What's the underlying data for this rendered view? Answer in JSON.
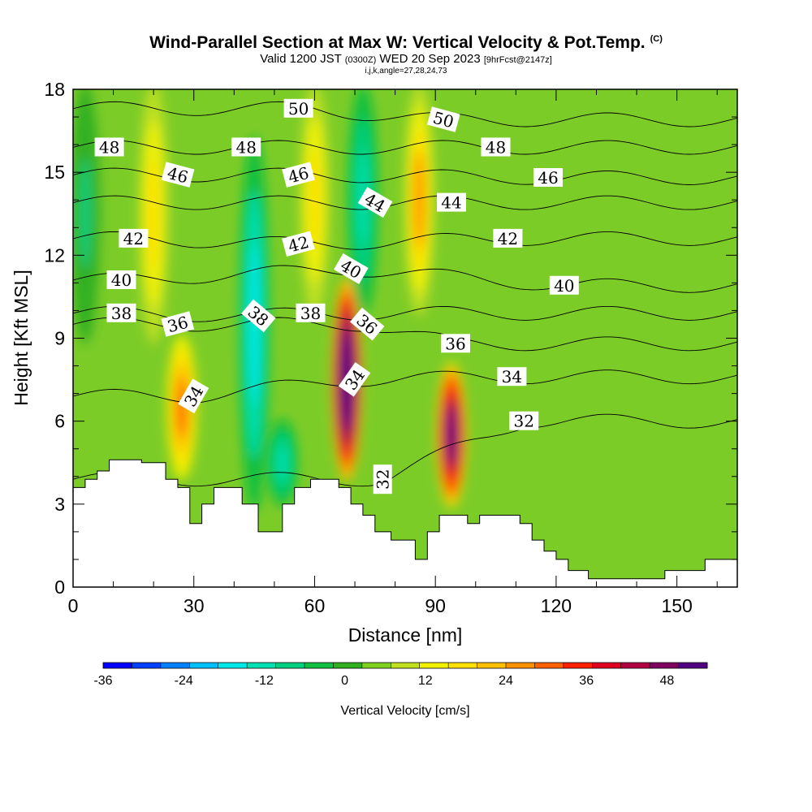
{
  "title": {
    "line1": "Wind-Parallel Section at Max W: Vertical Velocity & Pot.Temp.",
    "line1_mark": "(C)",
    "line2_a": "Valid 1200 JST",
    "line2_b": "(0300Z)",
    "line2_c": "WED 20 Sep 2023",
    "line2_d": "[9hrFcst@2147z]",
    "line3": "i,j,k,angle=27,28,24,73"
  },
  "chart_data": {
    "type": "heatmap",
    "xlabel": "Distance [nm]",
    "ylabel": "Height [Kft MSL]",
    "xlim": [
      0,
      165
    ],
    "ylim": [
      0,
      18
    ],
    "x_ticks": [
      "0",
      "30",
      "60",
      "90",
      "120",
      "150"
    ],
    "y_ticks": [
      "0",
      "3",
      "6",
      "9",
      "12",
      "15",
      "18"
    ],
    "colorbar": {
      "label": "Vertical Velocity [cm/s]",
      "min": -36,
      "max": 54,
      "step": 4,
      "tick_labels": [
        "-36",
        "-24",
        "-12",
        "0",
        "12",
        "24",
        "36",
        "48"
      ],
      "colors": [
        "#0000ff",
        "#0040ff",
        "#0080ff",
        "#00c0ff",
        "#00e8e8",
        "#00e0b0",
        "#00d080",
        "#10c040",
        "#30b020",
        "#80d020",
        "#c0e020",
        "#f0f000",
        "#ffe000",
        "#ffc000",
        "#ff9000",
        "#ff6000",
        "#ff2000",
        "#e00020",
        "#b00040",
        "#800060",
        "#500080"
      ]
    },
    "vertical_velocity_cores": [
      {
        "x": 27,
        "y_top": 9,
        "y_bottom": 4,
        "w": 24
      },
      {
        "x": 68,
        "y_top": 11,
        "y_bottom": 4,
        "w": 54
      },
      {
        "x": 94,
        "y_top": 8,
        "y_bottom": 3,
        "w": 44
      },
      {
        "x": 20,
        "y_top": 18,
        "y_bottom": 9,
        "w": 14
      },
      {
        "x": 60,
        "y_top": 18,
        "y_bottom": 10,
        "w": 12
      },
      {
        "x": 86,
        "y_top": 18,
        "y_bottom": 10,
        "w": 20
      },
      {
        "x": 45,
        "y_top": 16,
        "y_bottom": 3,
        "w": -18
      },
      {
        "x": 52,
        "y_top": 6,
        "y_bottom": 3,
        "w": -14
      },
      {
        "x": 72,
        "y_top": 18,
        "y_bottom": 10,
        "w": -16
      },
      {
        "x": 3,
        "y_top": 18,
        "y_bottom": 9,
        "w": -10
      }
    ],
    "theta_contours": [
      {
        "level": "32",
        "label_x": 77,
        "label_y": 3.9,
        "rot": -90
      },
      {
        "level": "32",
        "label_x": 112,
        "label_y": 6.0,
        "rot": 0
      },
      {
        "level": "34",
        "label_x": 30,
        "label_y": 6.9,
        "rot": -60
      },
      {
        "level": "34",
        "label_x": 70,
        "label_y": 7.5,
        "rot": -55
      },
      {
        "level": "34",
        "label_x": 109,
        "label_y": 7.6,
        "rot": 0
      },
      {
        "level": "36",
        "label_x": 26,
        "label_y": 9.5,
        "rot": -15
      },
      {
        "level": "36",
        "label_x": 73,
        "label_y": 9.5,
        "rot": 40
      },
      {
        "level": "36",
        "label_x": 95,
        "label_y": 8.8,
        "rot": 0
      },
      {
        "level": "38",
        "label_x": 12,
        "label_y": 9.9,
        "rot": 0
      },
      {
        "level": "38",
        "label_x": 46,
        "label_y": 9.8,
        "rot": 40
      },
      {
        "level": "38",
        "label_x": 59,
        "label_y": 9.9,
        "rot": 0
      },
      {
        "level": "40",
        "label_x": 12,
        "label_y": 11.1,
        "rot": 0
      },
      {
        "level": "40",
        "label_x": 69,
        "label_y": 11.5,
        "rot": 30
      },
      {
        "level": "40",
        "label_x": 122,
        "label_y": 10.9,
        "rot": 0
      },
      {
        "level": "42",
        "label_x": 15,
        "label_y": 12.6,
        "rot": 0
      },
      {
        "level": "42",
        "label_x": 56,
        "label_y": 12.4,
        "rot": -15
      },
      {
        "level": "42",
        "label_x": 108,
        "label_y": 12.6,
        "rot": 0
      },
      {
        "level": "44",
        "label_x": 75,
        "label_y": 13.9,
        "rot": 30
      },
      {
        "level": "44",
        "label_x": 94,
        "label_y": 13.9,
        "rot": 0
      },
      {
        "level": "46",
        "label_x": 26,
        "label_y": 14.9,
        "rot": 15
      },
      {
        "level": "46",
        "label_x": 56,
        "label_y": 14.9,
        "rot": -15
      },
      {
        "level": "46",
        "label_x": 118,
        "label_y": 14.8,
        "rot": 0
      },
      {
        "level": "48",
        "label_x": 9,
        "label_y": 15.9,
        "rot": 0
      },
      {
        "level": "48",
        "label_x": 43,
        "label_y": 15.9,
        "rot": 0
      },
      {
        "level": "48",
        "label_x": 105,
        "label_y": 15.9,
        "rot": 0
      },
      {
        "level": "50",
        "label_x": 56,
        "label_y": 17.3,
        "rot": 0
      },
      {
        "level": "50",
        "label_x": 92,
        "label_y": 16.9,
        "rot": 15
      }
    ],
    "terrain": [
      [
        0,
        3.6
      ],
      [
        3,
        3.6
      ],
      [
        3,
        3.9
      ],
      [
        6,
        3.9
      ],
      [
        6,
        4.2
      ],
      [
        9,
        4.2
      ],
      [
        9,
        4.6
      ],
      [
        17,
        4.6
      ],
      [
        17,
        4.5
      ],
      [
        23,
        4.5
      ],
      [
        23,
        3.9
      ],
      [
        26,
        3.9
      ],
      [
        26,
        3.6
      ],
      [
        29,
        3.6
      ],
      [
        29,
        2.3
      ],
      [
        32,
        2.3
      ],
      [
        32,
        3.0
      ],
      [
        35,
        3.0
      ],
      [
        35,
        3.6
      ],
      [
        42,
        3.6
      ],
      [
        42,
        3.0
      ],
      [
        46,
        3.0
      ],
      [
        46,
        2.0
      ],
      [
        52,
        2.0
      ],
      [
        52,
        3.0
      ],
      [
        55,
        3.0
      ],
      [
        55,
        3.6
      ],
      [
        59,
        3.6
      ],
      [
        59,
        3.9
      ],
      [
        66,
        3.9
      ],
      [
        66,
        3.6
      ],
      [
        69,
        3.6
      ],
      [
        69,
        3.0
      ],
      [
        72,
        3.0
      ],
      [
        72,
        2.6
      ],
      [
        75,
        2.6
      ],
      [
        75,
        2.0
      ],
      [
        79,
        2.0
      ],
      [
        79,
        1.7
      ],
      [
        85,
        1.7
      ],
      [
        85,
        1.0
      ],
      [
        88,
        1.0
      ],
      [
        88,
        2.0
      ],
      [
        91,
        2.0
      ],
      [
        91,
        2.6
      ],
      [
        98,
        2.6
      ],
      [
        98,
        2.3
      ],
      [
        101,
        2.3
      ],
      [
        101,
        2.6
      ],
      [
        111,
        2.6
      ],
      [
        111,
        2.3
      ],
      [
        114,
        2.3
      ],
      [
        114,
        1.7
      ],
      [
        117,
        1.7
      ],
      [
        117,
        1.3
      ],
      [
        120,
        1.3
      ],
      [
        120,
        1.0
      ],
      [
        123,
        1.0
      ],
      [
        123,
        0.6
      ],
      [
        128,
        0.6
      ],
      [
        128,
        0.3
      ],
      [
        147,
        0.3
      ],
      [
        147,
        0.6
      ],
      [
        157,
        0.6
      ],
      [
        157,
        1.0
      ],
      [
        165,
        1.0
      ]
    ]
  }
}
